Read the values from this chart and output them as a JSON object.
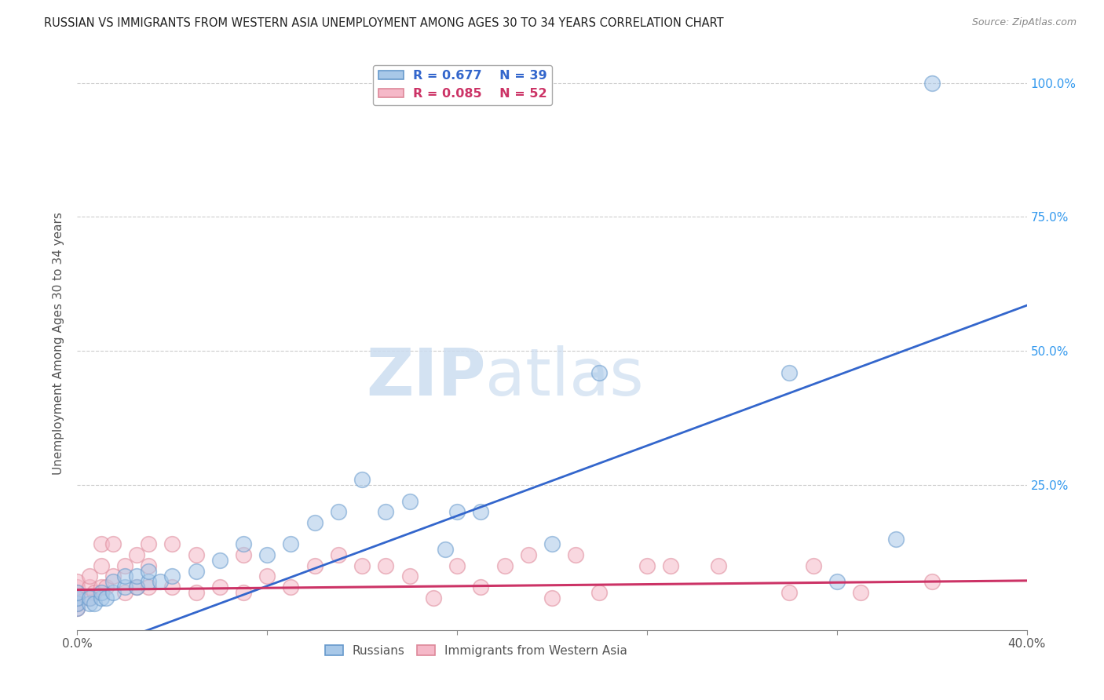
{
  "title": "RUSSIAN VS IMMIGRANTS FROM WESTERN ASIA UNEMPLOYMENT AMONG AGES 30 TO 34 YEARS CORRELATION CHART",
  "source": "Source: ZipAtlas.com",
  "ylabel": "Unemployment Among Ages 30 to 34 years",
  "xlim": [
    0.0,
    0.4
  ],
  "ylim": [
    -0.02,
    1.05
  ],
  "ylim_display": [
    0.0,
    1.05
  ],
  "xticks": [
    0.0,
    0.08,
    0.16,
    0.24,
    0.32,
    0.4
  ],
  "yticks": [
    0.25,
    0.5,
    0.75,
    1.0
  ],
  "legend_r1": "R = 0.677",
  "legend_n1": "N = 39",
  "legend_r2": "R = 0.085",
  "legend_n2": "N = 52",
  "blue_color": "#a8c8e8",
  "pink_color": "#f5b8c8",
  "blue_edge_color": "#6699cc",
  "pink_edge_color": "#dd8899",
  "blue_line_color": "#3366cc",
  "pink_line_color": "#cc3366",
  "watermark_zip": "ZIP",
  "watermark_atlas": "atlas",
  "blue_scatter_x": [
    0.0,
    0.0,
    0.0,
    0.0,
    0.005,
    0.005,
    0.007,
    0.01,
    0.01,
    0.012,
    0.015,
    0.015,
    0.02,
    0.02,
    0.025,
    0.025,
    0.03,
    0.03,
    0.035,
    0.04,
    0.05,
    0.06,
    0.07,
    0.08,
    0.09,
    0.1,
    0.11,
    0.12,
    0.13,
    0.14,
    0.155,
    0.16,
    0.17,
    0.2,
    0.22,
    0.3,
    0.32,
    0.345,
    0.36
  ],
  "blue_scatter_y": [
    0.02,
    0.03,
    0.04,
    0.05,
    0.03,
    0.04,
    0.03,
    0.04,
    0.05,
    0.04,
    0.05,
    0.07,
    0.06,
    0.08,
    0.06,
    0.08,
    0.07,
    0.09,
    0.07,
    0.08,
    0.09,
    0.11,
    0.14,
    0.12,
    0.14,
    0.18,
    0.2,
    0.26,
    0.2,
    0.22,
    0.13,
    0.2,
    0.2,
    0.14,
    0.46,
    0.46,
    0.07,
    0.15,
    1.0
  ],
  "pink_scatter_x": [
    0.0,
    0.0,
    0.0,
    0.0,
    0.0,
    0.0,
    0.005,
    0.005,
    0.005,
    0.007,
    0.01,
    0.01,
    0.01,
    0.012,
    0.015,
    0.015,
    0.02,
    0.02,
    0.025,
    0.025,
    0.03,
    0.03,
    0.03,
    0.04,
    0.04,
    0.05,
    0.05,
    0.06,
    0.07,
    0.07,
    0.08,
    0.09,
    0.1,
    0.11,
    0.12,
    0.13,
    0.14,
    0.15,
    0.16,
    0.17,
    0.18,
    0.19,
    0.2,
    0.21,
    0.22,
    0.24,
    0.25,
    0.27,
    0.3,
    0.31,
    0.33,
    0.36
  ],
  "pink_scatter_y": [
    0.02,
    0.03,
    0.04,
    0.05,
    0.06,
    0.07,
    0.04,
    0.06,
    0.08,
    0.05,
    0.06,
    0.1,
    0.14,
    0.06,
    0.08,
    0.14,
    0.05,
    0.1,
    0.06,
    0.12,
    0.06,
    0.1,
    0.14,
    0.06,
    0.14,
    0.05,
    0.12,
    0.06,
    0.05,
    0.12,
    0.08,
    0.06,
    0.1,
    0.12,
    0.1,
    0.1,
    0.08,
    0.04,
    0.1,
    0.06,
    0.1,
    0.12,
    0.04,
    0.12,
    0.05,
    0.1,
    0.1,
    0.1,
    0.05,
    0.1,
    0.05,
    0.07
  ],
  "blue_line_x": [
    -0.01,
    0.4
  ],
  "blue_line_y": [
    -0.085,
    0.585
  ],
  "pink_line_x": [
    0.0,
    0.4
  ],
  "pink_line_y": [
    0.055,
    0.072
  ]
}
